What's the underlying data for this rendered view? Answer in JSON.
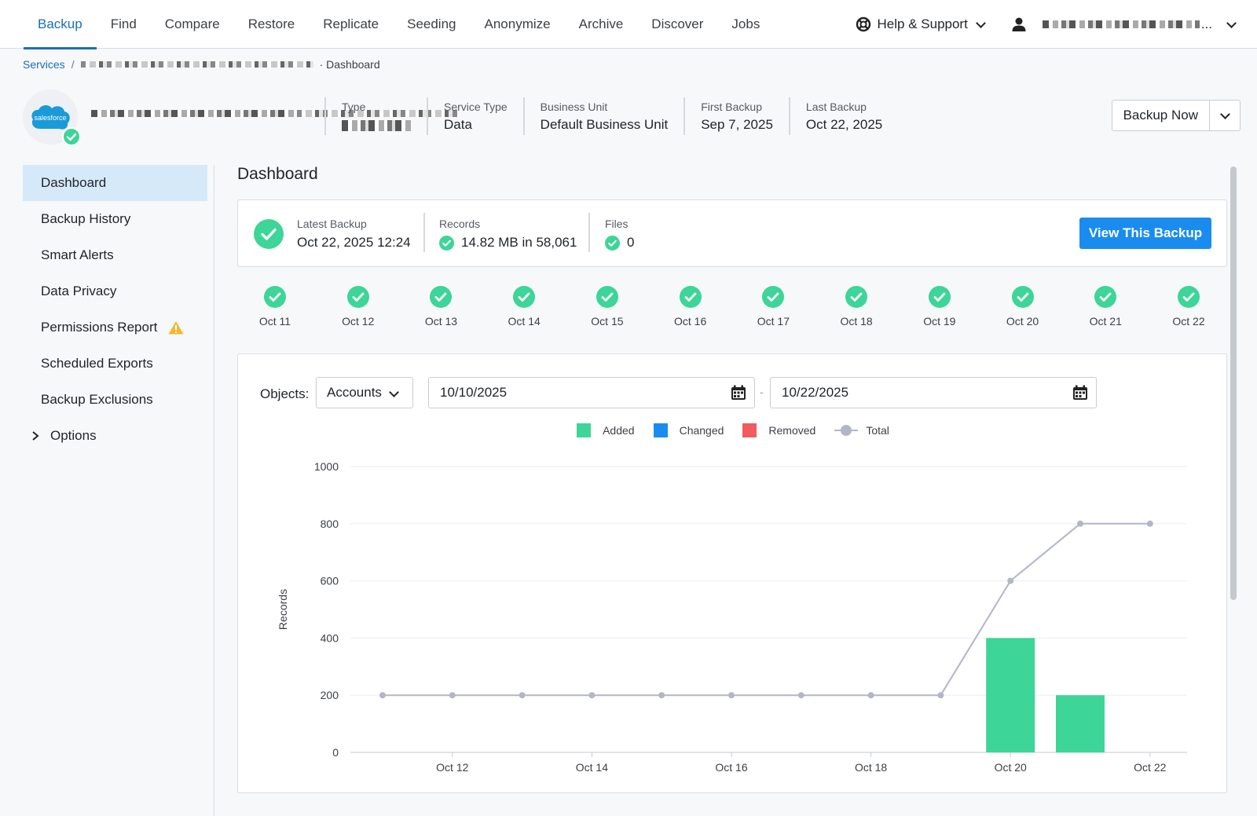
{
  "nav": {
    "tabs": [
      "Backup",
      "Find",
      "Compare",
      "Restore",
      "Replicate",
      "Seeding",
      "Anonymize",
      "Archive",
      "Discover",
      "Jobs"
    ],
    "active_tab": "Backup",
    "help_label": "Help & Support",
    "user_suffix": "..."
  },
  "breadcrumb": {
    "root": "Services",
    "separator": "/",
    "current": "· Dashboard"
  },
  "service": {
    "logo_text": "salesforce",
    "meta": [
      {
        "label": "Type",
        "value": ""
      },
      {
        "label": "Service Type",
        "value": "Data"
      },
      {
        "label": "Business Unit",
        "value": "Default Business Unit"
      },
      {
        "label": "First Backup",
        "value": "Sep 7, 2025"
      },
      {
        "label": "Last Backup",
        "value": "Oct 22, 2025"
      }
    ],
    "backup_now_label": "Backup Now"
  },
  "sidebar": {
    "items": [
      "Dashboard",
      "Backup History",
      "Smart Alerts",
      "Data Privacy",
      "Permissions Report",
      "Scheduled Exports",
      "Backup Exclusions",
      "Options"
    ],
    "active": "Dashboard"
  },
  "dashboard": {
    "title": "Dashboard",
    "latest_backup_label": "Latest Backup",
    "latest_backup_value": "Oct 22, 2025 12:24",
    "records_label": "Records",
    "records_value": "14.82 MB in 58,061",
    "files_label": "Files",
    "files_value": "0",
    "view_button": "View This Backup",
    "days": [
      "Oct 11",
      "Oct 12",
      "Oct 13",
      "Oct 14",
      "Oct 15",
      "Oct 16",
      "Oct 17",
      "Oct 18",
      "Oct 19",
      "Oct 20",
      "Oct 21",
      "Oct 22"
    ],
    "objects_label": "Objects:",
    "objects_selected": "Accounts",
    "date_from": "10/10/2025",
    "date_to": "10/22/2025",
    "date_dash": "-"
  },
  "colors": {
    "added": "#3dd598",
    "changed": "#1a8cf0",
    "removed": "#f25b5b",
    "total": "#b3b6c8",
    "accent": "#1a6fb6"
  },
  "chart_data": {
    "type": "bar",
    "x": [
      "Oct 11",
      "Oct 12",
      "Oct 13",
      "Oct 14",
      "Oct 15",
      "Oct 16",
      "Oct 17",
      "Oct 18",
      "Oct 19",
      "Oct 20",
      "Oct 21",
      "Oct 22"
    ],
    "x_tick_labels": [
      "Oct 12",
      "Oct 14",
      "Oct 16",
      "Oct 18",
      "Oct 20",
      "Oct 22"
    ],
    "series": [
      {
        "name": "Added",
        "type": "bar",
        "values": [
          0,
          0,
          0,
          0,
          0,
          0,
          0,
          0,
          0,
          400,
          200,
          0
        ]
      },
      {
        "name": "Changed",
        "type": "bar",
        "values": [
          0,
          0,
          0,
          0,
          0,
          0,
          0,
          0,
          0,
          0,
          0,
          0
        ]
      },
      {
        "name": "Removed",
        "type": "bar",
        "values": [
          0,
          0,
          0,
          0,
          0,
          0,
          0,
          0,
          0,
          0,
          0,
          0
        ]
      },
      {
        "name": "Total",
        "type": "line",
        "values": [
          200,
          200,
          200,
          200,
          200,
          200,
          200,
          200,
          200,
          600,
          800,
          800
        ]
      }
    ],
    "ylabel": "Records",
    "ylim": [
      0,
      1000
    ],
    "yticks": [
      0,
      200,
      400,
      600,
      800,
      1000
    ],
    "legend_position": "top-center",
    "grid": true
  }
}
